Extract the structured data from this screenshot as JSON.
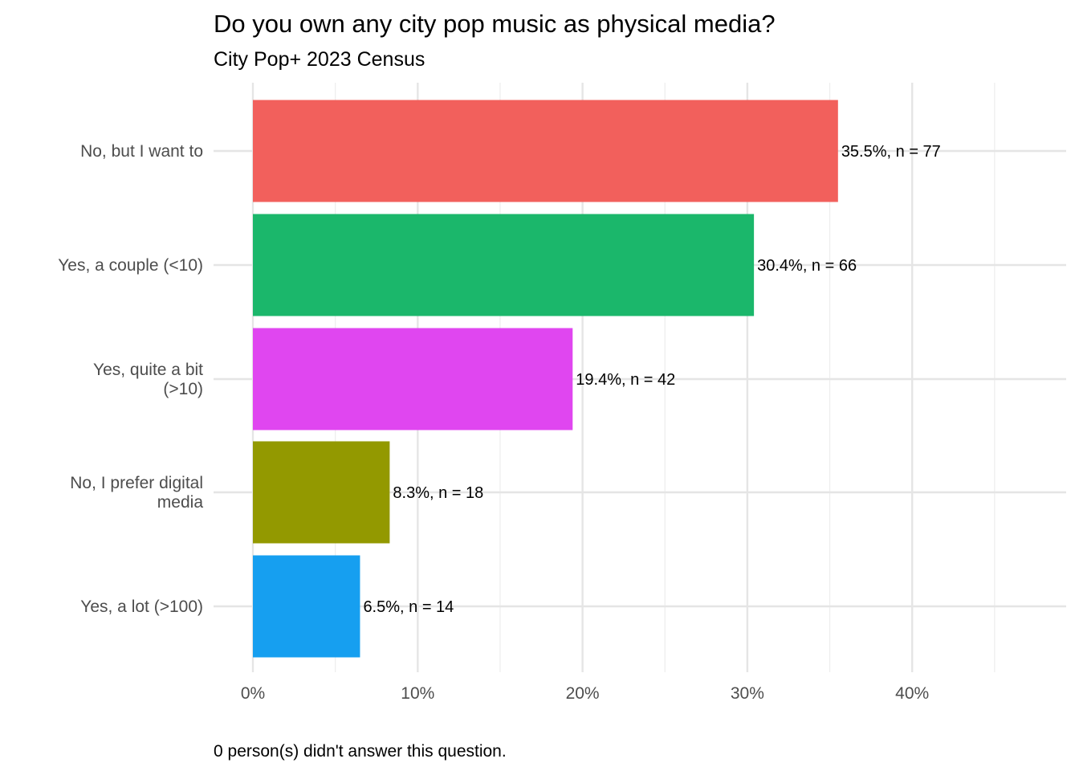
{
  "chart_data": {
    "type": "bar",
    "orientation": "horizontal",
    "title": "Do you own any city pop music as physical media?",
    "subtitle": "City Pop+ 2023 Census",
    "caption": "0 person(s) didn't answer this question.",
    "xlabel": "",
    "ylabel": "",
    "xlim": [
      0,
      0.49
    ],
    "x_ticks": [
      0,
      0.1,
      0.2,
      0.3,
      0.4
    ],
    "x_tick_labels": [
      "0%",
      "10%",
      "20%",
      "30%",
      "40%"
    ],
    "grid": true,
    "legend": "none",
    "categories": [
      [
        "No, but I want to"
      ],
      [
        "Yes, a couple (<10)"
      ],
      [
        "Yes, quite a bit",
        "(>10)"
      ],
      [
        "No, I prefer digital",
        "media"
      ],
      [
        "Yes, a lot (>100)"
      ]
    ],
    "values": [
      0.355,
      0.304,
      0.194,
      0.083,
      0.065
    ],
    "counts": [
      77,
      66,
      42,
      18,
      14
    ],
    "data_labels": [
      "35.5%, n = 77",
      "30.4%, n = 66",
      "19.4%, n = 42",
      "8.3%, n = 18",
      "6.5%, n = 14"
    ],
    "colors": [
      "#F2605C",
      "#1BB76B",
      "#E046F0",
      "#939900",
      "#169FF0"
    ]
  }
}
